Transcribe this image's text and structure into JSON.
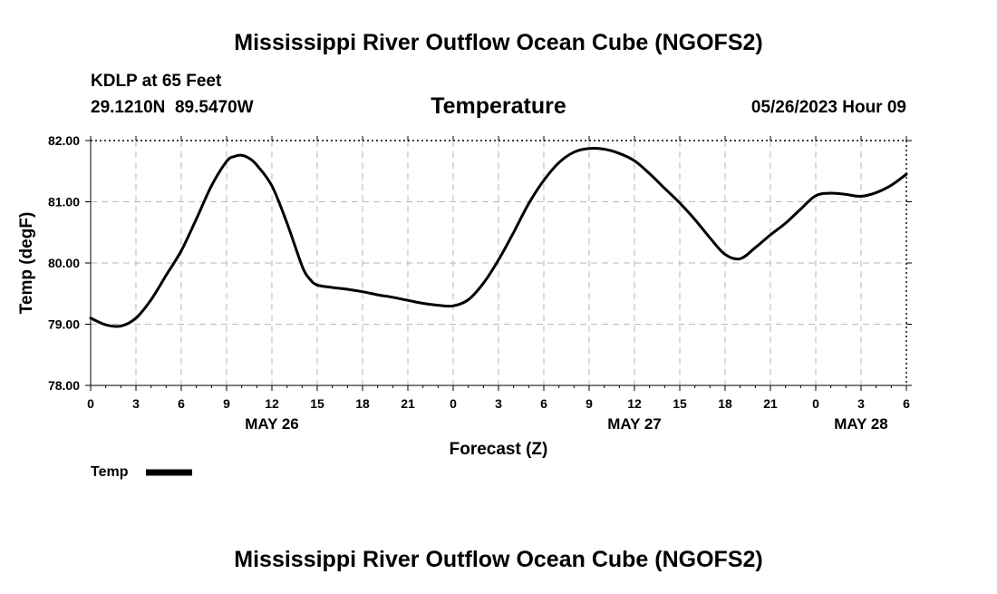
{
  "page": {
    "title": "Mississippi River Outflow Ocean Cube (NGOFS2)",
    "footer_title": "Mississippi River Outflow Ocean Cube (NGOFS2)",
    "station_line": "KDLP at 65 Feet",
    "coords_line": "29.1210N  89.5470W",
    "chart_title": "Temperature",
    "timestamp": "05/26/2023 Hour 09"
  },
  "chart_data": {
    "type": "line",
    "title": "Temperature",
    "xlabel": "Forecast (Z)",
    "ylabel": "Temp (degF)",
    "ylim": [
      78.0,
      82.0
    ],
    "xlim": [
      0,
      54
    ],
    "x_unit": "hours from 05/26/2023 00Z",
    "grid": true,
    "y_ticks": [
      78,
      79,
      80,
      81,
      82
    ],
    "y_tick_labels": [
      "78.00",
      "79.00",
      "80.00",
      "81.00",
      "82.00"
    ],
    "x_ticks": [
      0,
      3,
      6,
      9,
      12,
      15,
      18,
      21,
      24,
      27,
      30,
      33,
      36,
      39,
      42,
      45,
      48,
      51,
      54
    ],
    "x_tick_labels": [
      "0",
      "3",
      "6",
      "9",
      "12",
      "15",
      "18",
      "21",
      "0",
      "3",
      "6",
      "9",
      "12",
      "15",
      "18",
      "21",
      "0",
      "3",
      "6"
    ],
    "date_labels": [
      {
        "hour": 12,
        "label": "MAY 26"
      },
      {
        "hour": 36,
        "label": "MAY 27"
      },
      {
        "hour": 51,
        "label": "MAY 28"
      }
    ],
    "legend_position": "bottom-left",
    "series": [
      {
        "name": "Temp",
        "color": "#000000",
        "x": [
          0,
          1,
          2,
          3,
          4,
          5,
          6,
          7,
          8,
          9,
          9.5,
          10,
          10.5,
          11,
          12,
          13,
          14,
          14.5,
          15,
          16,
          17,
          18,
          19,
          20,
          21,
          22,
          23,
          24,
          25,
          26,
          27,
          28,
          29,
          30,
          31,
          32,
          33,
          34,
          35,
          36,
          37,
          38,
          39,
          40,
          41,
          42,
          43,
          44,
          45,
          46,
          47,
          48,
          49,
          50,
          51,
          52,
          53,
          54
        ],
        "values": [
          79.1,
          78.99,
          78.97,
          79.1,
          79.4,
          79.8,
          80.2,
          80.72,
          81.26,
          81.66,
          81.74,
          81.76,
          81.71,
          81.6,
          81.26,
          80.65,
          79.95,
          79.74,
          79.64,
          79.6,
          79.57,
          79.53,
          79.48,
          79.44,
          79.39,
          79.34,
          79.31,
          79.3,
          79.4,
          79.67,
          80.05,
          80.5,
          80.97,
          81.35,
          81.64,
          81.81,
          81.87,
          81.86,
          81.79,
          81.67,
          81.46,
          81.22,
          80.98,
          80.71,
          80.41,
          80.14,
          80.07,
          80.25,
          80.46,
          80.65,
          80.88,
          81.1,
          81.14,
          81.12,
          81.09,
          81.15,
          81.27,
          81.45
        ]
      }
    ]
  }
}
